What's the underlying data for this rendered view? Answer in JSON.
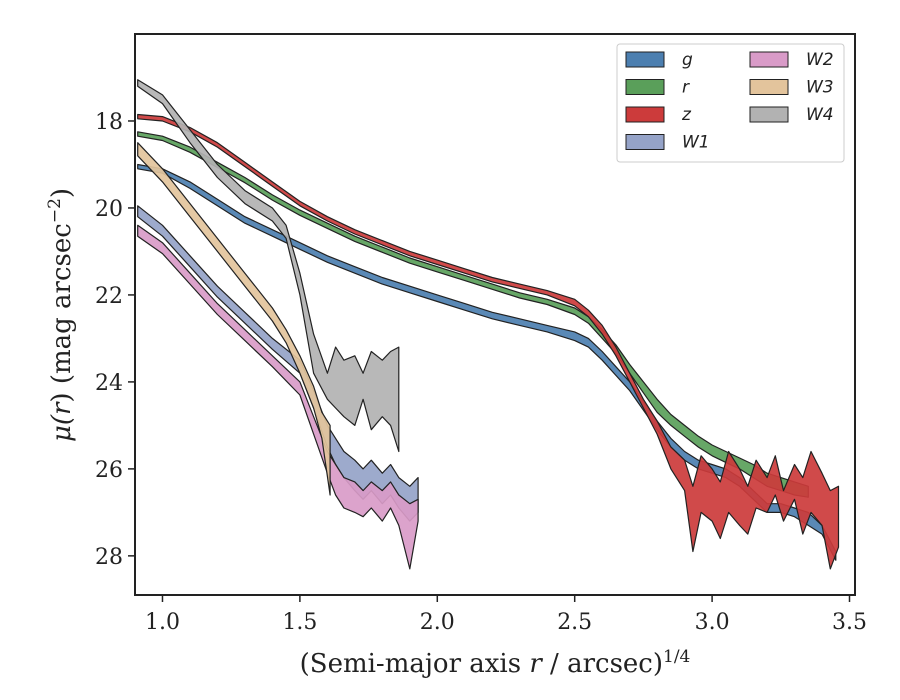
{
  "chart_data": {
    "type": "area",
    "xlabel_prefix": "(Semi-major axis ",
    "xlabel_var": "r",
    "xlabel_mid": " / arcsec)",
    "xlabel_sup": "1/4",
    "ylabel_prefix": "μ(",
    "ylabel_var": "r",
    "ylabel_mid": ") (mag arcsec",
    "ylabel_sup": "−2",
    "ylabel_suffix": ")",
    "xlim": [
      0.9,
      3.52
    ],
    "ylim": [
      28.9,
      16.0
    ],
    "y_inverted": true,
    "grid": false,
    "legend_position": "top-right",
    "xticks": [
      {
        "v": 1.0,
        "label": "1.0"
      },
      {
        "v": 1.5,
        "label": "1.5"
      },
      {
        "v": 2.0,
        "label": "2.0"
      },
      {
        "v": 2.5,
        "label": "2.5"
      },
      {
        "v": 3.0,
        "label": "3.0"
      },
      {
        "v": 3.5,
        "label": "3.5"
      }
    ],
    "yticks": [
      {
        "v": 18,
        "label": "18"
      },
      {
        "v": 20,
        "label": "20"
      },
      {
        "v": 22,
        "label": "22"
      },
      {
        "v": 24,
        "label": "24"
      },
      {
        "v": 26,
        "label": "26"
      },
      {
        "v": 28,
        "label": "28"
      }
    ],
    "series": [
      {
        "name": "g",
        "color": "#4c7fb0",
        "x": [
          0.91,
          1.0,
          1.1,
          1.2,
          1.3,
          1.4,
          1.5,
          1.6,
          1.7,
          1.8,
          1.9,
          2.0,
          2.1,
          2.2,
          2.3,
          2.4,
          2.5,
          2.55,
          2.6,
          2.65,
          2.7,
          2.75,
          2.8,
          2.85,
          2.9,
          2.95,
          3.0,
          3.05,
          3.1,
          3.15,
          3.2,
          3.25,
          3.3,
          3.35,
          3.4,
          3.45
        ],
        "lo": [
          19.0,
          19.1,
          19.4,
          19.8,
          20.2,
          20.5,
          20.8,
          21.1,
          21.35,
          21.6,
          21.8,
          22.0,
          22.2,
          22.4,
          22.55,
          22.7,
          22.85,
          23.0,
          23.3,
          23.65,
          24.0,
          24.45,
          24.9,
          25.3,
          25.6,
          25.8,
          25.9,
          26.0,
          26.2,
          26.5,
          26.8,
          26.8,
          26.9,
          27.0,
          27.3,
          27.9
        ],
        "hi": [
          19.1,
          19.2,
          19.55,
          19.95,
          20.35,
          20.65,
          20.95,
          21.25,
          21.5,
          21.75,
          21.95,
          22.15,
          22.35,
          22.55,
          22.7,
          22.85,
          23.05,
          23.2,
          23.5,
          23.85,
          24.2,
          24.65,
          25.1,
          25.5,
          25.8,
          26.0,
          26.1,
          26.2,
          26.4,
          26.7,
          27.0,
          27.0,
          27.1,
          27.3,
          27.5,
          28.1
        ]
      },
      {
        "name": "r",
        "color": "#5a9f5a",
        "x": [
          0.91,
          1.0,
          1.1,
          1.2,
          1.3,
          1.4,
          1.5,
          1.6,
          1.7,
          1.8,
          1.9,
          2.0,
          2.1,
          2.2,
          2.3,
          2.4,
          2.5,
          2.55,
          2.6,
          2.65,
          2.7,
          2.75,
          2.8,
          2.85,
          2.9,
          2.95,
          3.0,
          3.05,
          3.1,
          3.15,
          3.2,
          3.25,
          3.3,
          3.35
        ],
        "lo": [
          18.25,
          18.35,
          18.6,
          18.95,
          19.3,
          19.7,
          20.05,
          20.35,
          20.65,
          20.9,
          21.15,
          21.35,
          21.55,
          21.75,
          21.95,
          22.1,
          22.3,
          22.5,
          22.8,
          23.15,
          23.6,
          24.0,
          24.4,
          24.75,
          25.0,
          25.25,
          25.45,
          25.6,
          25.75,
          25.9,
          26.1,
          26.2,
          26.3,
          26.4
        ],
        "hi": [
          18.35,
          18.45,
          18.72,
          19.07,
          19.42,
          19.82,
          20.17,
          20.47,
          20.77,
          21.02,
          21.27,
          21.47,
          21.67,
          21.87,
          22.07,
          22.22,
          22.45,
          22.65,
          23.0,
          23.35,
          23.8,
          24.25,
          24.7,
          25.0,
          25.25,
          25.5,
          25.7,
          25.85,
          26.0,
          26.2,
          26.4,
          26.5,
          26.6,
          26.65
        ]
      },
      {
        "name": "z",
        "color": "#cc3b3b",
        "x": [
          0.91,
          1.0,
          1.1,
          1.2,
          1.3,
          1.4,
          1.5,
          1.6,
          1.7,
          1.8,
          1.9,
          2.0,
          2.1,
          2.2,
          2.3,
          2.4,
          2.5,
          2.55,
          2.6,
          2.65,
          2.7,
          2.75,
          2.8,
          2.85,
          2.9,
          2.93,
          2.96,
          3.0,
          3.03,
          3.06,
          3.1,
          3.13,
          3.16,
          3.2,
          3.23,
          3.26,
          3.3,
          3.33,
          3.36,
          3.4,
          3.43,
          3.46
        ],
        "lo": [
          17.85,
          17.9,
          18.15,
          18.5,
          18.95,
          19.4,
          19.85,
          20.2,
          20.5,
          20.75,
          21.0,
          21.2,
          21.4,
          21.6,
          21.75,
          21.9,
          22.1,
          22.35,
          22.7,
          23.2,
          23.8,
          24.4,
          24.9,
          25.5,
          25.8,
          26.4,
          25.7,
          26.0,
          26.3,
          25.6,
          26.0,
          26.4,
          25.8,
          26.2,
          25.7,
          26.5,
          25.9,
          26.2,
          25.6,
          26.1,
          26.5,
          26.4
        ],
        "hi": [
          17.95,
          18.0,
          18.25,
          18.6,
          19.05,
          19.5,
          19.95,
          20.3,
          20.6,
          20.85,
          21.1,
          21.3,
          21.5,
          21.7,
          21.85,
          22.0,
          22.25,
          22.5,
          22.9,
          23.4,
          24.0,
          24.6,
          25.2,
          26.0,
          26.5,
          27.9,
          27.0,
          27.2,
          27.6,
          27.0,
          27.3,
          27.5,
          26.9,
          27.0,
          26.6,
          27.2,
          26.7,
          27.5,
          27.0,
          27.3,
          28.3,
          27.8
        ]
      },
      {
        "name": "W1",
        "color": "#95a3c8",
        "x": [
          0.91,
          1.0,
          1.1,
          1.2,
          1.3,
          1.4,
          1.5,
          1.55,
          1.6,
          1.63,
          1.66,
          1.7,
          1.73,
          1.76,
          1.8,
          1.83,
          1.86,
          1.9,
          1.93
        ],
        "lo": [
          19.95,
          20.4,
          21.1,
          21.8,
          22.4,
          23.0,
          23.5,
          24.2,
          25.0,
          25.3,
          25.6,
          25.8,
          26.0,
          25.8,
          26.1,
          25.9,
          26.2,
          26.4,
          26.2
        ],
        "hi": [
          20.2,
          20.65,
          21.35,
          22.05,
          22.65,
          23.25,
          23.8,
          24.6,
          25.5,
          25.9,
          26.2,
          26.5,
          26.7,
          26.5,
          26.8,
          26.6,
          26.9,
          27.2,
          27.0
        ]
      },
      {
        "name": "W2",
        "color": "#d99bc8",
        "x": [
          0.91,
          1.0,
          1.1,
          1.2,
          1.3,
          1.4,
          1.5,
          1.55,
          1.6,
          1.63,
          1.66,
          1.7,
          1.73,
          1.76,
          1.8,
          1.83,
          1.86,
          1.9,
          1.93
        ],
        "lo": [
          20.4,
          20.8,
          21.5,
          22.2,
          22.8,
          23.4,
          24.0,
          24.8,
          25.6,
          25.9,
          26.2,
          26.3,
          26.5,
          26.3,
          26.5,
          26.3,
          26.6,
          26.8,
          26.7
        ],
        "hi": [
          20.65,
          21.05,
          21.75,
          22.45,
          23.05,
          23.65,
          24.3,
          25.2,
          26.1,
          26.6,
          26.9,
          27.0,
          27.1,
          26.9,
          27.2,
          26.9,
          27.3,
          28.3,
          27.2
        ]
      },
      {
        "name": "W3",
        "color": "#e3c49c",
        "x": [
          0.91,
          1.0,
          1.1,
          1.2,
          1.3,
          1.4,
          1.45,
          1.5,
          1.55,
          1.58,
          1.61
        ],
        "lo": [
          18.5,
          19.1,
          19.9,
          20.7,
          21.5,
          22.3,
          22.8,
          23.4,
          24.1,
          24.7,
          25.0
        ],
        "hi": [
          18.8,
          19.4,
          20.2,
          21.0,
          21.8,
          22.6,
          23.1,
          23.8,
          24.6,
          25.3,
          26.6
        ]
      },
      {
        "name": "W4",
        "color": "#b2b2b2",
        "x": [
          0.91,
          1.0,
          1.1,
          1.2,
          1.3,
          1.4,
          1.45,
          1.5,
          1.55,
          1.6,
          1.63,
          1.66,
          1.7,
          1.73,
          1.76,
          1.8,
          1.83,
          1.86
        ],
        "lo": [
          17.05,
          17.4,
          18.2,
          19.0,
          19.6,
          20.0,
          20.4,
          21.5,
          22.9,
          23.8,
          23.2,
          23.5,
          23.4,
          23.8,
          23.3,
          23.5,
          23.3,
          23.2
        ],
        "hi": [
          17.2,
          17.6,
          18.5,
          19.3,
          19.9,
          20.3,
          20.7,
          22.0,
          23.8,
          24.4,
          24.6,
          24.8,
          25.0,
          24.4,
          25.1,
          24.8,
          25.0,
          25.6
        ]
      }
    ],
    "legend": {
      "columns": [
        [
          "g",
          "r",
          "z",
          "W1"
        ],
        [
          "W2",
          "W3",
          "W4"
        ]
      ]
    }
  }
}
